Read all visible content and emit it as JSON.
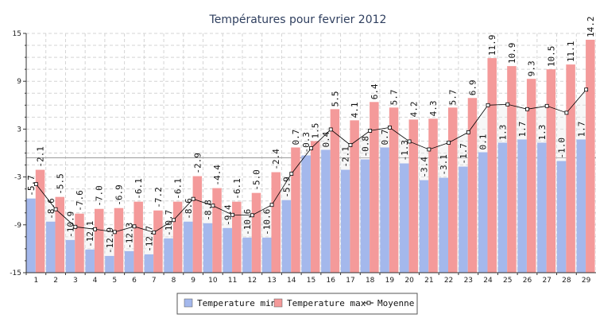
{
  "chart_data": {
    "type": "bar",
    "title": "Températures pour fevrier 2012",
    "categories": [
      "1",
      "2",
      "3",
      "4",
      "5",
      "6",
      "7",
      "8",
      "9",
      "10",
      "11",
      "12",
      "13",
      "14",
      "15",
      "16",
      "17",
      "18",
      "19",
      "20",
      "21",
      "22",
      "23",
      "24",
      "25",
      "26",
      "27",
      "28",
      "29"
    ],
    "series": [
      {
        "name": "Temperature min",
        "kind": "bar",
        "values": [
          -5.7,
          -8.6,
          -10.9,
          -12.1,
          -12.9,
          -12.3,
          -12.7,
          -10.7,
          -8.6,
          -8.8,
          -9.4,
          -10.6,
          -10.6,
          -5.9,
          -0.3,
          0.4,
          -2.1,
          -0.8,
          0.7,
          -1.3,
          -3.4,
          -3.1,
          -1.7,
          0.1,
          1.3,
          1.7,
          1.3,
          -1.0,
          1.7
        ],
        "color": "#a4b8ec"
      },
      {
        "name": "Temperature max",
        "kind": "bar",
        "values": [
          -2.1,
          -5.5,
          -7.6,
          -7.0,
          -6.9,
          -6.1,
          -7.2,
          -6.1,
          -2.9,
          -4.4,
          -6.1,
          -5.0,
          -2.4,
          0.7,
          1.5,
          5.5,
          4.1,
          6.4,
          5.7,
          4.2,
          4.3,
          5.7,
          6.9,
          11.9,
          10.9,
          9.3,
          10.5,
          11.1,
          14.2
        ],
        "color": "#f49a9a"
      },
      {
        "name": "Moyenne",
        "kind": "line",
        "values": [
          -3.9,
          -7.05,
          -9.25,
          -9.55,
          -9.9,
          -9.2,
          -9.95,
          -8.4,
          -5.75,
          -6.6,
          -7.75,
          -7.8,
          -6.5,
          -2.6,
          0.6,
          2.95,
          1.0,
          2.8,
          3.2,
          1.45,
          0.45,
          1.3,
          2.6,
          6.0,
          6.1,
          5.5,
          5.9,
          5.05,
          7.95
        ],
        "color": "#000000"
      }
    ],
    "ylim": [
      -15,
      15
    ],
    "yticks": [
      -15,
      -9,
      -3,
      3,
      9,
      15
    ],
    "reference_line": -0.6,
    "grid": true,
    "legend_position": "bottom-center"
  }
}
